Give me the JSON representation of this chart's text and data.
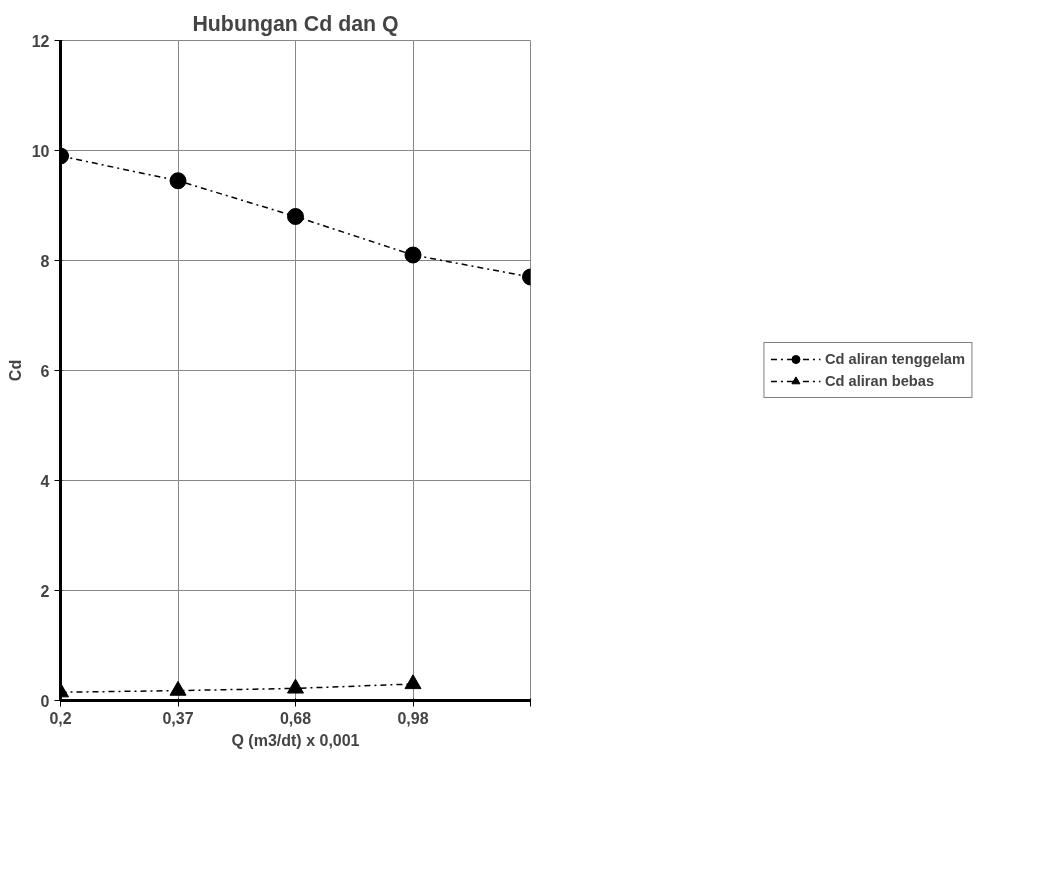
{
  "chart_data": {
    "type": "line",
    "title": "Hubungan Cd dan Q",
    "xlabel": "Q (m3/dt) x 0,001",
    "ylabel": "Cd",
    "categories": [
      "0,2",
      "0,37",
      "0,68",
      "0,98",
      null
    ],
    "series": [
      {
        "name": "Cd aliran tenggelam",
        "color": "#000000",
        "marker": "circle",
        "values": [
          9.9,
          9.45,
          8.8,
          8.1,
          7.7
        ]
      },
      {
        "name": "Cd aliran bebas",
        "color": "#000000",
        "marker": "triangle",
        "values": [
          0.15,
          0.18,
          0.22,
          0.3,
          null
        ]
      }
    ],
    "ylim": [
      0,
      12
    ],
    "yticks": [
      0,
      2,
      4,
      6,
      8,
      10,
      12
    ],
    "grid": true,
    "legend": "right",
    "line_style": "dashed"
  }
}
